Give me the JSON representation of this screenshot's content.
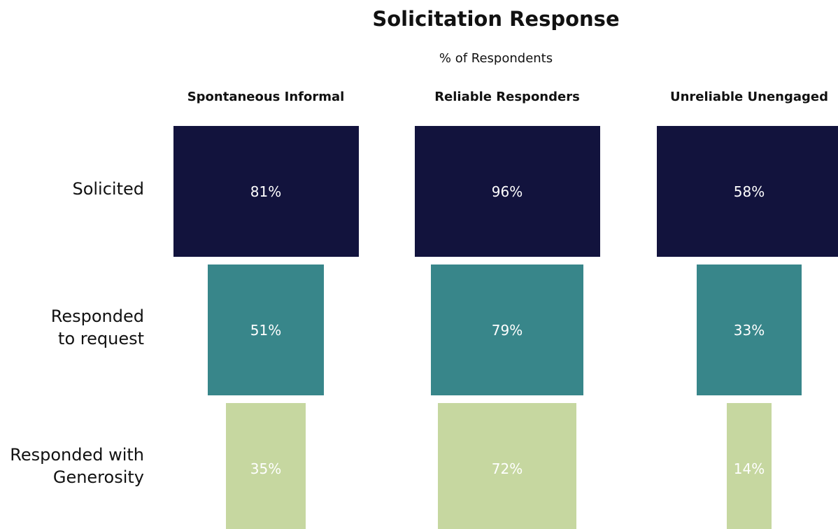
{
  "chart_data": {
    "type": "funnel",
    "title": "Solicitation Response",
    "subtitle": "% of Respondents",
    "categories": [
      "Spontaneous Informal",
      "Reliable Responders",
      "Unreliable Unengaged"
    ],
    "series": [
      {
        "name": "Solicited",
        "color": "#12133d",
        "values": [
          81,
          96,
          58
        ],
        "value_labels": [
          "81%",
          "96%",
          "58%"
        ]
      },
      {
        "name": "Responded\nto request",
        "color": "#38868a",
        "values": [
          51,
          79,
          33
        ],
        "value_labels": [
          "51%",
          "79%",
          "33%"
        ]
      },
      {
        "name": "Responded with\nGenerosity",
        "color": "#c6d7a0",
        "values": [
          35,
          72,
          14
        ],
        "value_labels": [
          "35%",
          "72%",
          "14%"
        ]
      }
    ]
  }
}
